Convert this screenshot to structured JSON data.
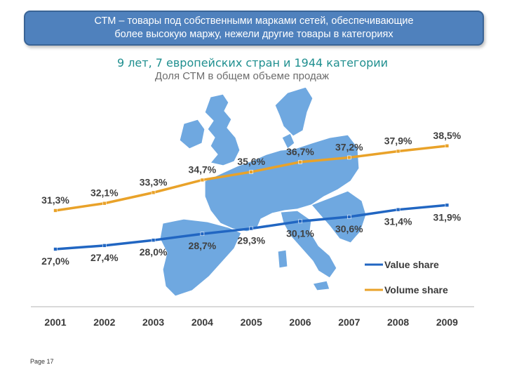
{
  "banner": {
    "line1": "СТМ – товары под собственными марками сетей, обеспечивающие",
    "line2": "более высокую маржу, нежели другие товары в категориях"
  },
  "subtitle1": "9 лет, 7 европейских стран и 1944 категории",
  "subtitle2": "Доля СТМ в общем объеме продаж",
  "page": "Page 17",
  "colors": {
    "value_share": "#2166c2",
    "volume_share": "#e9a229",
    "map": "#6fa8e0",
    "banner": "#4f81bd"
  },
  "chart_data": {
    "type": "line",
    "x": [
      "2001",
      "2002",
      "2003",
      "2004",
      "2005",
      "2006",
      "2007",
      "2008",
      "2009"
    ],
    "series": [
      {
        "name": "Value share",
        "values": [
          27.0,
          27.4,
          28.0,
          28.7,
          29.3,
          30.1,
          30.6,
          31.4,
          31.9
        ],
        "labels": [
          "27,0%",
          "27,4%",
          "28,0%",
          "28,7%",
          "29,3%",
          "30,1%",
          "30,6%",
          "31,4%",
          "31,9%"
        ]
      },
      {
        "name": "Volume share",
        "values": [
          31.3,
          32.1,
          33.3,
          34.7,
          35.6,
          36.7,
          37.2,
          37.9,
          38.5
        ],
        "labels": [
          "31,3%",
          "32,1%",
          "33,3%",
          "34,7%",
          "35,6%",
          "36,7%",
          "37,2%",
          "37,9%",
          "38,5%"
        ]
      }
    ],
    "legend": "bottom-right",
    "grid": false,
    "background": "map of Europe"
  }
}
